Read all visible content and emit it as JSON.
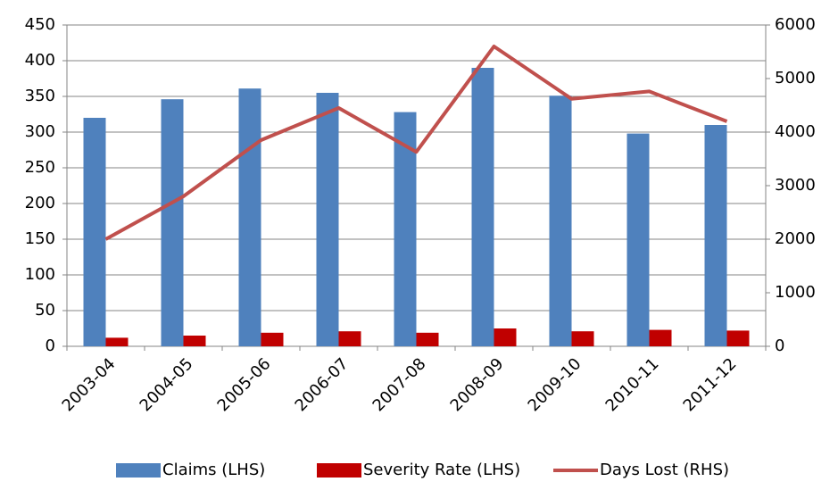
{
  "chart_data": {
    "type": "bar",
    "categories": [
      "2003-04",
      "2004-05",
      "2005-06",
      "2006-07",
      "2007-08",
      "2008-09",
      "2009-10",
      "2010-11",
      "2011-12"
    ],
    "series": [
      {
        "name": "Claims (LHS)",
        "color": "#4f81bd",
        "type": "bar",
        "values": [
          320,
          346,
          361,
          355,
          328,
          390,
          351,
          298,
          310
        ]
      },
      {
        "name": "Severity Rate (LHS)",
        "color": "#c00000",
        "type": "bar",
        "values": [
          12,
          15,
          19,
          21,
          19,
          25,
          21,
          23,
          22
        ]
      },
      {
        "name": "Days Lost (RHS)",
        "color": "#c0504d",
        "type": "line",
        "axis": "y2",
        "values": [
          2000,
          2800,
          3850,
          4450,
          3630,
          5600,
          4620,
          4760,
          4200
        ]
      }
    ],
    "ylim": [
      0,
      450
    ],
    "yticks": [
      0,
      50,
      100,
      150,
      200,
      250,
      300,
      350,
      400,
      450
    ],
    "y2lim": [
      0,
      6000
    ],
    "y2ticks": [
      0,
      1000,
      2000,
      3000,
      4000,
      5000,
      6000
    ],
    "grid": true,
    "legend": "bottom"
  }
}
